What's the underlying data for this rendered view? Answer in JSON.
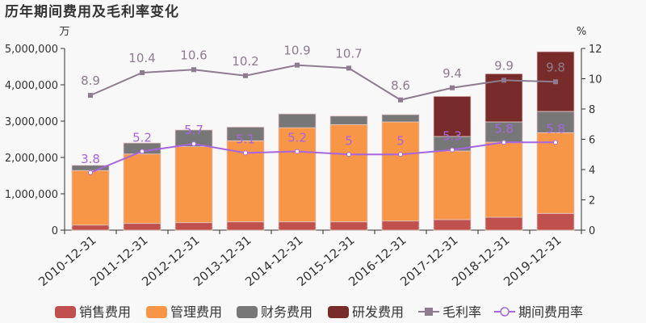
{
  "chart_data": {
    "type": "bar",
    "title": "历年期间费用及毛利率变化",
    "left_unit": "万",
    "right_unit": "%",
    "categories": [
      "2010-12-31",
      "2011-12-31",
      "2012-12-31",
      "2013-12-31",
      "2014-12-31",
      "2015-12-31",
      "2016-12-31",
      "2017-12-31",
      "2018-12-31",
      "2019-12-31"
    ],
    "ylim_left": [
      0,
      5000000
    ],
    "yticks_left": [
      "0",
      "1,000,000",
      "2,000,000",
      "3,000,000",
      "4,000,000",
      "5,000,000"
    ],
    "ylim_right": [
      0,
      12
    ],
    "yticks_right": [
      "0",
      "2",
      "4",
      "6",
      "8",
      "10",
      "12"
    ],
    "stacked": true,
    "grid": false,
    "legend_position": "bottom",
    "series": [
      {
        "name": "销售费用",
        "type": "bar",
        "color": "#c0504d",
        "values": [
          140000,
          185000,
          207000,
          229000,
          229000,
          229000,
          251000,
          289000,
          356000,
          460000
        ]
      },
      {
        "name": "管理费用",
        "type": "bar",
        "color": "#f79646",
        "values": [
          1500000,
          1910000,
          2090000,
          2230000,
          2590000,
          2675000,
          2727000,
          1889000,
          2066000,
          2222000
        ]
      },
      {
        "name": "财务费用",
        "type": "bar",
        "color": "#777777",
        "values": [
          145000,
          304000,
          460000,
          378000,
          380000,
          236000,
          200000,
          400000,
          556000,
          585000
        ]
      },
      {
        "name": "研发费用",
        "type": "bar",
        "color": "#772c2a",
        "values": [
          0,
          0,
          0,
          0,
          0,
          0,
          0,
          1104000,
          1326000,
          1644000
        ]
      },
      {
        "name": "毛利率",
        "type": "line",
        "axis": "right",
        "marker": "square",
        "color": "#8e7b8f",
        "values": [
          8.9,
          10.4,
          10.6,
          10.2,
          10.9,
          10.7,
          8.6,
          9.4,
          9.9,
          9.8
        ]
      },
      {
        "name": "期间费用率",
        "type": "line",
        "axis": "right",
        "marker": "circle",
        "color": "#a765e0",
        "values": [
          3.8,
          5.2,
          5.7,
          5.1,
          5.2,
          5,
          5,
          5.3,
          5.8,
          5.8
        ]
      }
    ]
  }
}
